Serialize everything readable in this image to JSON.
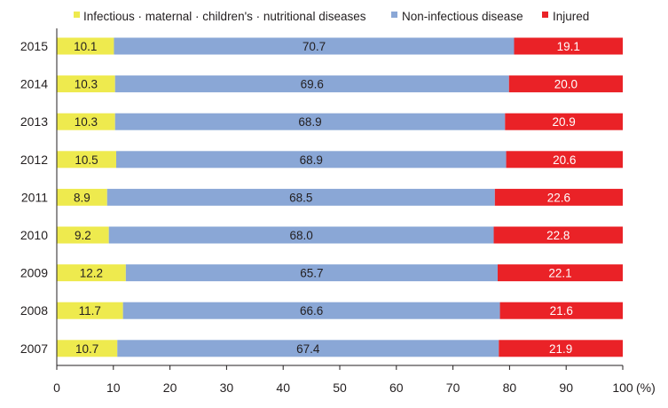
{
  "chart_data": {
    "type": "bar",
    "orientation": "horizontal",
    "stacked": true,
    "title": "",
    "xlabel": "",
    "ylabel": "",
    "unit": "(%)",
    "xlim": [
      0,
      100
    ],
    "xticks": [
      "0",
      "10",
      "20",
      "30",
      "40",
      "50",
      "60",
      "70",
      "80",
      "90",
      "100"
    ],
    "grid": false,
    "legend_position": "top",
    "categories": [
      "2015",
      "2014",
      "2013",
      "2012",
      "2011",
      "2010",
      "2009",
      "2008",
      "2007"
    ],
    "series": [
      {
        "name": "Infectious · maternal · children's · nutritional diseases",
        "color": "#eeea4e",
        "values": [
          10.1,
          10.3,
          10.3,
          10.5,
          8.9,
          9.2,
          12.2,
          11.7,
          10.7
        ],
        "labels": [
          "10.1",
          "10.3",
          "10.3",
          "10.5",
          "8.9",
          "9.2",
          "12.2",
          "11.7",
          "10.7"
        ]
      },
      {
        "name": "Non-infectious disease",
        "color": "#8aa7d6",
        "values": [
          70.7,
          69.6,
          68.9,
          68.9,
          68.5,
          68.0,
          65.7,
          66.6,
          67.4
        ],
        "labels": [
          "70.7",
          "69.6",
          "68.9",
          "68.9",
          "68.5",
          "68.0",
          "65.7",
          "66.6",
          "67.4"
        ]
      },
      {
        "name": "Injured",
        "color": "#ea2227",
        "values": [
          19.1,
          20.0,
          20.9,
          20.6,
          22.6,
          22.8,
          22.1,
          21.6,
          21.9
        ],
        "labels": [
          "19.1",
          "20.0",
          "20.9",
          "20.6",
          "22.6",
          "22.8",
          "22.1",
          "21.6",
          "21.9"
        ]
      }
    ]
  }
}
